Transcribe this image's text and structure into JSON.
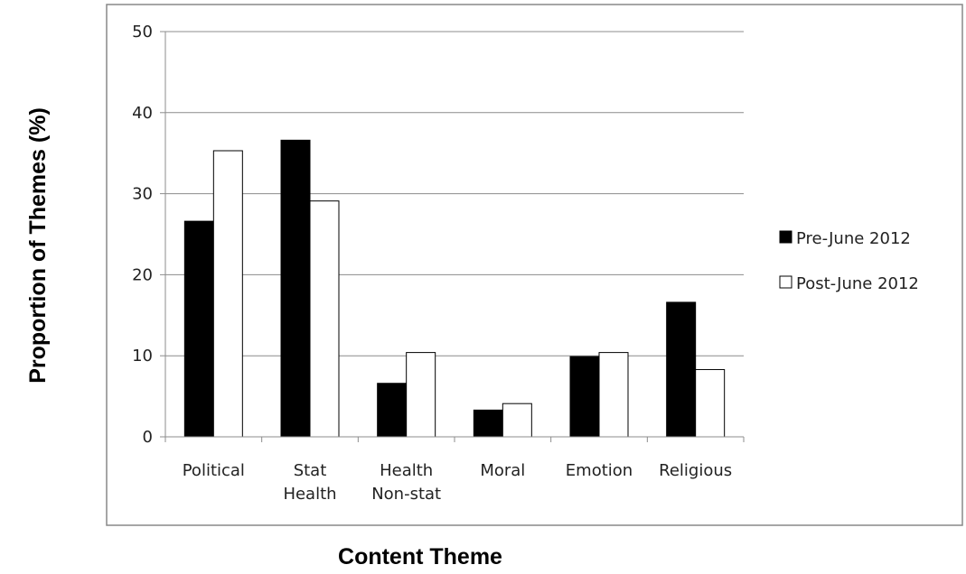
{
  "chart_data": {
    "type": "bar",
    "xlabel": "Content Theme",
    "ylabel": "Proportion of Themes (%)",
    "ylim": [
      0,
      50
    ],
    "yticks": [
      0,
      10,
      20,
      30,
      40,
      50
    ],
    "grid": true,
    "legend_position": "right",
    "categories": [
      [
        "Political"
      ],
      [
        "Stat",
        "Health"
      ],
      [
        "Health",
        "Non-stat"
      ],
      [
        "Moral"
      ],
      [
        "Emotion"
      ],
      [
        "Religious"
      ]
    ],
    "series": [
      {
        "name": "Pre-June 2012",
        "color": "#000000",
        "values": [
          26.6,
          36.6,
          6.6,
          3.3,
          9.9,
          16.6
        ]
      },
      {
        "name": "Post-June 2012",
        "color": "#ffffff",
        "values": [
          35.3,
          29.1,
          10.4,
          4.1,
          10.4,
          8.3
        ]
      }
    ]
  }
}
